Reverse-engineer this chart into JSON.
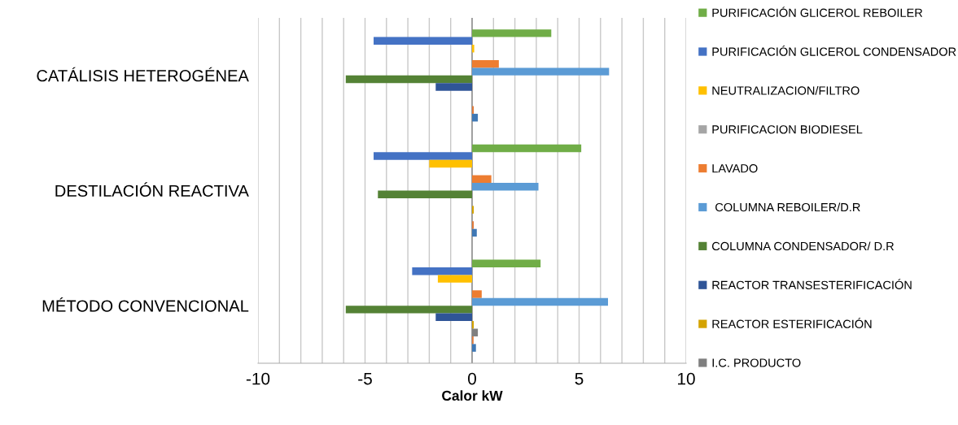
{
  "chart_data": {
    "type": "bar",
    "orientation": "horizontal",
    "xlabel": "Calor kW",
    "categories": [
      "CATÁLISIS HETEROGÉNEA",
      "DESTILACIÓN REACTIVA",
      "MÉTODO CONVENCIONAL"
    ],
    "series": [
      {
        "name": "PURIFICACIÓN GLICEROL REBOILER",
        "color": "#70ad47",
        "values": [
          3.7,
          5.1,
          3.2
        ]
      },
      {
        "name": "PURIFICACIÓN GLICEROL CONDENSADOR",
        "color": "#4472c4",
        "values": [
          -4.6,
          -4.6,
          -2.8
        ]
      },
      {
        "name": "NEUTRALIZACION/FILTRO",
        "color": "#ffc000",
        "values": [
          0.1,
          -2.0,
          -1.6
        ]
      },
      {
        "name": "PURIFICACION BIODIESEL",
        "color": "#a5a5a5",
        "values": [
          null,
          null,
          null
        ]
      },
      {
        "name": "LAVADO",
        "color": "#ed7d31",
        "values": [
          1.25,
          0.9,
          0.45
        ]
      },
      {
        "name": " COLUMNA REBOILER/D.R",
        "color": "#5b9bd5",
        "values": [
          6.4,
          3.1,
          6.35
        ]
      },
      {
        "name": "COLUMNA CONDENSADOR/ D.R",
        "color": "#548235",
        "values": [
          -5.9,
          -4.4,
          -5.9
        ]
      },
      {
        "name": "REACTOR TRANSESTERIFICACIÓN",
        "color": "#2f5597",
        "values": [
          -1.7,
          null,
          -1.7
        ]
      },
      {
        "name": "REACTOR ESTERIFICACIÓN",
        "color": "#d4a300",
        "values": [
          null,
          0.08,
          0.08
        ]
      },
      {
        "name": "I.C. PRODUCTO",
        "color": "#7f7f7f",
        "values": [
          null,
          null,
          0.27
        ]
      },
      {
        "color": "#e07b3c",
        "values": [
          0.08,
          0.08,
          0.07
        ]
      },
      {
        "color": "#3f78b5",
        "values": [
          0.27,
          0.22,
          0.18
        ]
      }
    ],
    "xlim": [
      -10,
      10
    ],
    "xticks": [
      -10,
      {
        "value": -9,
        "label": null
      },
      {
        "value": -8,
        "label": null
      },
      {
        "value": -7,
        "label": null
      },
      {
        "value": -6,
        "label": null
      },
      -5,
      {
        "value": -4,
        "label": null
      },
      {
        "value": -3,
        "label": null
      },
      {
        "value": -2,
        "label": null
      },
      {
        "value": -1,
        "label": null
      },
      0,
      {
        "value": 1,
        "label": null
      },
      {
        "value": 2,
        "label": null
      },
      {
        "value": 3,
        "label": null
      },
      {
        "value": 4,
        "label": null
      },
      5,
      {
        "value": 6,
        "label": null
      },
      {
        "value": 7,
        "label": null
      },
      {
        "value": 8,
        "label": null
      },
      {
        "value": 9,
        "label": null
      },
      10
    ],
    "grid": "x",
    "legend": "right"
  }
}
